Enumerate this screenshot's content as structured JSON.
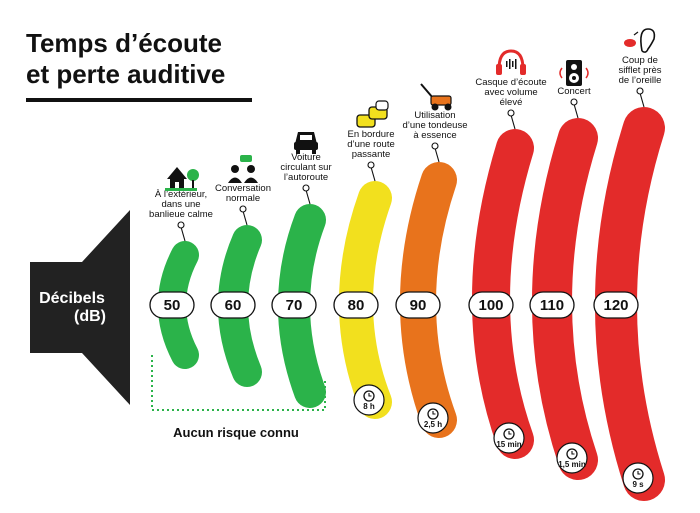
{
  "title": {
    "line1": "Temps d’écoute",
    "line2": "et perte auditive"
  },
  "speaker": {
    "line1": "Décibels",
    "line2": "(dB)"
  },
  "safe_label": "Aucun risque connu",
  "colors": {
    "green": "#2bb34a",
    "yellow": "#f2e01e",
    "orange": "#e8731c",
    "red": "#e32b2a",
    "dark": "#222222"
  },
  "levels": [
    {
      "db": "50",
      "color": "green",
      "icon": "house-icon",
      "label_lines": [
        "À l’extérieur,",
        "dans une",
        "banlieue calme"
      ]
    },
    {
      "db": "60",
      "color": "green",
      "icon": "conversation-icon",
      "label_lines": [
        "Conversation",
        "normale"
      ]
    },
    {
      "db": "70",
      "color": "green",
      "icon": "car-icon",
      "label_lines": [
        "Voiture",
        "circulant sur",
        "l’autoroute"
      ]
    },
    {
      "db": "80",
      "color": "yellow",
      "icon": "traffic-icon",
      "label_lines": [
        "En bordure",
        "d’une route",
        "passante"
      ],
      "time": "8 h"
    },
    {
      "db": "90",
      "color": "orange",
      "icon": "lawnmower-icon",
      "label_lines": [
        "Utilisation",
        "d’une tondeuse",
        "à essence"
      ],
      "time": "2,5 h"
    },
    {
      "db": "100",
      "color": "red",
      "icon": "headphones-icon",
      "label_lines": [
        "Casque d’écoute",
        "avec volume",
        "élevé"
      ],
      "time": "15 min"
    },
    {
      "db": "110",
      "color": "red",
      "icon": "speaker-icon",
      "label_lines": [
        "Concert"
      ],
      "time": "1,5 min"
    },
    {
      "db": "120",
      "color": "red",
      "icon": "whistle-ear-icon",
      "label_lines": [
        "Coup de",
        "sifflet près",
        "de l’oreille"
      ],
      "time": "9 s"
    }
  ]
}
